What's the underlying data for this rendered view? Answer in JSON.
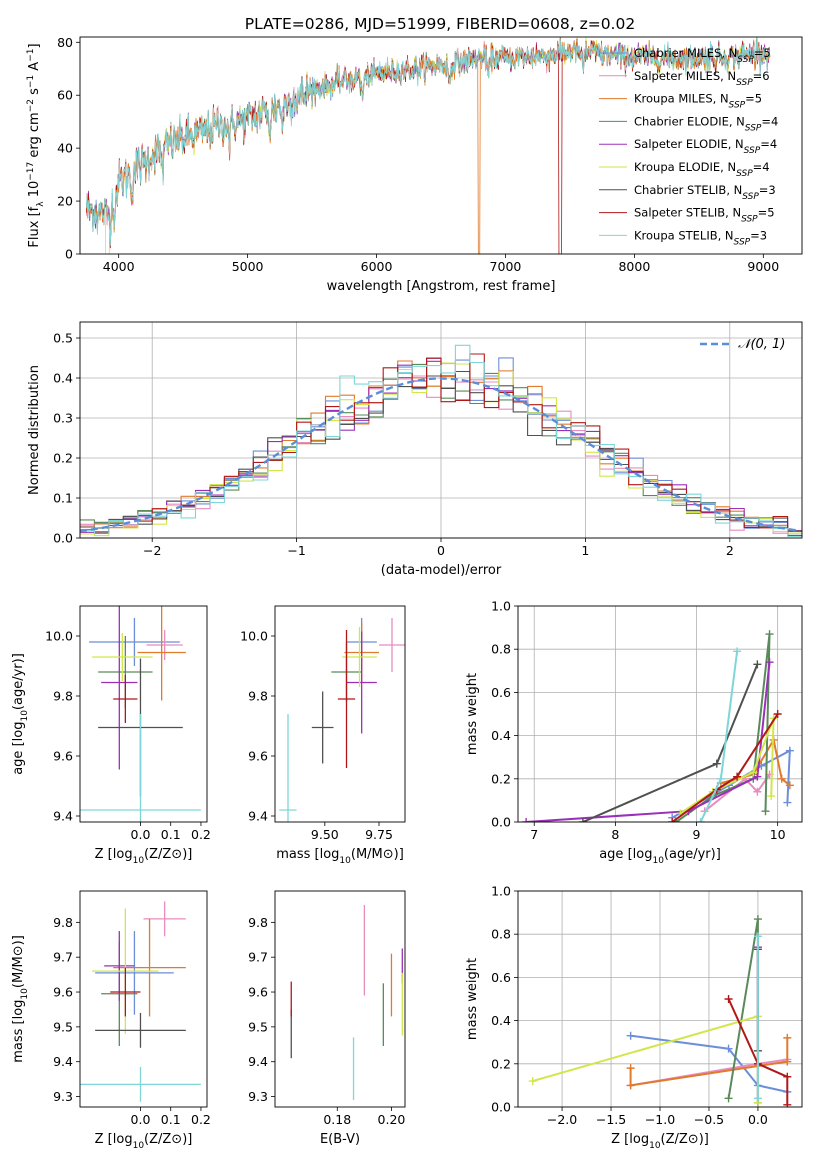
{
  "figure": {
    "title": "PLATE=0286, MJD=51999, FIBERID=0608, z=0.02"
  },
  "colors": {
    "Chabrier MILES": "#6b8fd8",
    "Salpeter MILES": "#e88cc0",
    "Kroupa MILES": "#e07a2c",
    "Chabrier ELODIE": "#5a8a5a",
    "Salpeter ELODIE": "#9b30b8",
    "Kroupa ELODIE": "#d2e64a",
    "Chabrier STELIB": "#505050",
    "Salpeter STELIB": "#b01818",
    "Kroupa STELIB": "#7fd6d8",
    "normal": "#5b8ed8"
  },
  "chart_data": [
    {
      "id": "spectrum",
      "type": "line",
      "xlabel": "wavelength [Angstrom, rest frame]",
      "ylabel": "Flux [f_λ 10^-17 erg cm^-2 s^-1 A^-1]",
      "xlim": [
        3700,
        9300
      ],
      "ylim": [
        0,
        82
      ],
      "xticks": [
        4000,
        5000,
        6000,
        7000,
        8000,
        9000
      ],
      "yticks": [
        0,
        20,
        40,
        60,
        80
      ],
      "legend_placement": "right",
      "legend": [
        {
          "label": "Chabrier MILES, N",
          "sub": "SSP",
          "tail": "=5"
        },
        {
          "label": "Salpeter MILES, N",
          "sub": "SSP",
          "tail": "=6"
        },
        {
          "label": "Kroupa MILES, N",
          "sub": "SSP",
          "tail": "=5"
        },
        {
          "label": "Chabrier ELODIE, N",
          "sub": "SSP",
          "tail": "=4"
        },
        {
          "label": "Salpeter ELODIE, N",
          "sub": "SSP",
          "tail": "=4"
        },
        {
          "label": "Kroupa ELODIE, N",
          "sub": "SSP",
          "tail": "=4"
        },
        {
          "label": "Chabrier STELIB, N",
          "sub": "SSP",
          "tail": "=3"
        },
        {
          "label": "Salpeter STELIB, N",
          "sub": "SSP",
          "tail": "=5"
        },
        {
          "label": "Kroupa STELIB, N",
          "sub": "SSP",
          "tail": "=3"
        }
      ],
      "continuum": {
        "x": [
          3750,
          3900,
          4000,
          4200,
          4400,
          4600,
          4800,
          5000,
          5200,
          5500,
          5800,
          6000,
          6300,
          6600,
          6800,
          7000,
          7300,
          7600,
          7800,
          8200,
          8600,
          9000,
          9050
        ],
        "y": [
          17,
          15,
          27,
          35,
          42,
          45,
          49,
          51,
          55,
          62,
          66,
          68,
          70,
          72,
          74,
          74,
          75,
          77,
          75,
          74,
          74,
          76,
          75
        ]
      },
      "dropouts": [
        {
          "series": "Kroupa ELODIE",
          "x_from": 3900,
          "x_to": 3925
        },
        {
          "series": "Kroupa MILES",
          "x_from": 6790,
          "x_to": 6800
        },
        {
          "series": "Salpeter STELIB",
          "x_from": 7415,
          "x_to": 7435
        }
      ]
    },
    {
      "id": "residuals",
      "type": "bar",
      "subtype": "step-histogram",
      "xlabel": "(data-model)/error",
      "ylabel": "Normed distribution",
      "xlim": [
        -2.5,
        2.5
      ],
      "ylim": [
        0,
        0.54
      ],
      "xticks": [
        -2,
        -1,
        0,
        1,
        2
      ],
      "yticks": [
        0,
        0.1,
        0.2,
        0.3,
        0.4,
        0.5
      ],
      "grid": true,
      "legend_placement": "top-right",
      "legend": "𝒩(0, 1)",
      "bin_width": 0.1,
      "gaussian": {
        "mean": 0,
        "sigma": 1
      }
    },
    {
      "id": "z-age",
      "type": "scatter",
      "subtype": "errorbar",
      "xlabel": "Z [log10(Z/Z⊙)]",
      "ylabel": "age [log10(age/yr)]",
      "xlim": [
        -0.2,
        0.22
      ],
      "ylim": [
        9.38,
        10.1
      ],
      "xticks": [
        0.0,
        0.1,
        0.2
      ],
      "yticks": [
        9.4,
        9.6,
        9.8,
        10.0
      ],
      "points": [
        {
          "series": "Chabrier MILES",
          "x": -0.02,
          "y": 9.98,
          "xerr": 0.15,
          "yerr": 0.08
        },
        {
          "series": "Salpeter MILES",
          "x": 0.08,
          "y": 9.97,
          "xerr": 0.06,
          "yerr": 0.05
        },
        {
          "series": "Kroupa MILES",
          "x": 0.07,
          "y": 9.945,
          "xerr": 0.08,
          "yerr": 0.16
        },
        {
          "series": "Chabrier ELODIE",
          "x": -0.05,
          "y": 9.88,
          "xerr": 0.09,
          "yerr": 0.12
        },
        {
          "series": "Salpeter ELODIE",
          "x": -0.07,
          "y": 9.845,
          "xerr": 0.06,
          "yerr": 0.29
        },
        {
          "series": "Kroupa ELODIE",
          "x": -0.06,
          "y": 9.93,
          "xerr": 0.1,
          "yerr": 0.08
        },
        {
          "series": "Chabrier STELIB",
          "x": 0.0,
          "y": 9.695,
          "xerr": 0.14,
          "yerr": 0.23
        },
        {
          "series": "Salpeter STELIB",
          "x": -0.05,
          "y": 9.79,
          "xerr": 0.04,
          "yerr": 0.08
        },
        {
          "series": "Kroupa STELIB",
          "x": 0.0,
          "y": 9.42,
          "xerr": 0.2,
          "yerr": 0.32
        }
      ]
    },
    {
      "id": "mass-age",
      "type": "scatter",
      "subtype": "errorbar",
      "xlabel": "mass [log10(M/M⊙)]",
      "ylabel": "",
      "xlim": [
        9.27,
        9.87
      ],
      "ylim": [
        9.38,
        10.1
      ],
      "xticks": [
        9.5,
        9.75
      ],
      "yticks": [
        9.4,
        9.6,
        9.8,
        10.0
      ],
      "points": [
        {
          "series": "Chabrier MILES",
          "x": 9.67,
          "y": 9.98,
          "xerr": 0.07,
          "yerr": 0.08
        },
        {
          "series": "Salpeter MILES",
          "x": 9.81,
          "y": 9.97,
          "xerr": 0.06,
          "yerr": 0.09
        },
        {
          "series": "Kroupa MILES",
          "x": 9.67,
          "y": 9.945,
          "xerr": 0.08,
          "yerr": 0.1
        },
        {
          "series": "Chabrier ELODIE",
          "x": 9.6,
          "y": 9.88,
          "xerr": 0.07,
          "yerr": 0.1
        },
        {
          "series": "Salpeter ELODIE",
          "x": 9.67,
          "y": 9.845,
          "xerr": 0.07,
          "yerr": 0.17
        },
        {
          "series": "Kroupa ELODIE",
          "x": 9.66,
          "y": 9.93,
          "xerr": 0.08,
          "yerr": 0.1
        },
        {
          "series": "Chabrier STELIB",
          "x": 9.49,
          "y": 9.695,
          "xerr": 0.05,
          "yerr": 0.12
        },
        {
          "series": "Salpeter STELIB",
          "x": 9.6,
          "y": 9.79,
          "xerr": 0.04,
          "yerr": 0.23
        },
        {
          "series": "Kroupa STELIB",
          "x": 9.33,
          "y": 9.42,
          "xerr": 0.04,
          "yerr": 0.32
        }
      ]
    },
    {
      "id": "age-weight",
      "type": "line",
      "xlabel": "age [log10(age/yr)]",
      "ylabel": "mass weight",
      "xlim": [
        6.8,
        10.3
      ],
      "ylim": [
        0,
        1.0
      ],
      "xticks": [
        7,
        8,
        9,
        10
      ],
      "yticks": [
        0.0,
        0.2,
        0.4,
        0.6,
        0.8,
        1.0
      ],
      "grid": true,
      "series": [
        {
          "name": "Chabrier MILES",
          "x": [
            8.7,
            9.4,
            9.8,
            10.15,
            10.12
          ],
          "y": [
            0.02,
            0.17,
            0.26,
            0.33,
            0.09
          ]
        },
        {
          "name": "Salpeter MILES",
          "x": [
            9.1,
            9.6,
            9.75,
            9.9
          ],
          "y": [
            0.05,
            0.2,
            0.14,
            0.22
          ]
        },
        {
          "name": "Kroupa MILES",
          "x": [
            9.3,
            9.7,
            9.95,
            10.05,
            10.15
          ],
          "y": [
            0.18,
            0.22,
            0.38,
            0.2,
            0.17
          ]
        },
        {
          "name": "Chabrier ELODIE",
          "x": [
            8.75,
            9.2,
            9.7,
            9.9,
            9.85
          ],
          "y": [
            0.0,
            0.12,
            0.2,
            0.87,
            0.05
          ]
        },
        {
          "name": "Salpeter ELODIE",
          "x": [
            6.9,
            8.9,
            9.75,
            9.9
          ],
          "y": [
            0.0,
            0.05,
            0.21,
            0.74
          ]
        },
        {
          "name": "Kroupa ELODIE",
          "x": [
            8.8,
            9.2,
            9.7,
            9.95,
            9.92
          ],
          "y": [
            0.04,
            0.14,
            0.23,
            0.48,
            0.12
          ]
        },
        {
          "name": "Chabrier STELIB",
          "x": [
            7.6,
            9.25,
            9.75
          ],
          "y": [
            0.0,
            0.27,
            0.73
          ]
        },
        {
          "name": "Salpeter STELIB",
          "x": [
            8.7,
            9.25,
            9.5,
            10.0
          ],
          "y": [
            0.0,
            0.15,
            0.21,
            0.5
          ]
        },
        {
          "name": "Kroupa STELIB",
          "x": [
            9.05,
            9.3,
            9.5
          ],
          "y": [
            0.0,
            0.2,
            0.79
          ]
        }
      ]
    },
    {
      "id": "z-mass",
      "type": "scatter",
      "subtype": "errorbar",
      "xlabel": "Z [log10(Z/Z⊙)]",
      "ylabel": "mass [log10(M/M⊙)]",
      "xlim": [
        -0.2,
        0.22
      ],
      "ylim": [
        9.27,
        9.89
      ],
      "xticks": [
        0.0,
        0.1,
        0.2
      ],
      "yticks": [
        9.3,
        9.4,
        9.5,
        9.6,
        9.7,
        9.8
      ],
      "points": [
        {
          "series": "Chabrier MILES",
          "x": -0.02,
          "y": 9.655,
          "xerr": 0.13,
          "yerr": 0.12
        },
        {
          "series": "Salpeter MILES",
          "x": 0.08,
          "y": 9.81,
          "xerr": 0.07,
          "yerr": 0.05
        },
        {
          "series": "Kroupa MILES",
          "x": 0.03,
          "y": 9.67,
          "xerr": 0.12,
          "yerr": 0.14
        },
        {
          "series": "Chabrier ELODIE",
          "x": -0.07,
          "y": 9.595,
          "xerr": 0.06,
          "yerr": 0.15
        },
        {
          "series": "Salpeter ELODIE",
          "x": -0.07,
          "y": 9.675,
          "xerr": 0.05,
          "yerr": 0.1
        },
        {
          "series": "Kroupa ELODIE",
          "x": -0.05,
          "y": 9.66,
          "xerr": 0.11,
          "yerr": 0.18
        },
        {
          "series": "Chabrier STELIB",
          "x": 0.0,
          "y": 9.49,
          "xerr": 0.15,
          "yerr": 0.05
        },
        {
          "series": "Salpeter STELIB",
          "x": -0.05,
          "y": 9.6,
          "xerr": 0.05,
          "yerr": 0.07
        },
        {
          "series": "Kroupa STELIB",
          "x": 0.0,
          "y": 9.335,
          "xerr": 0.2,
          "yerr": 0.05
        }
      ]
    },
    {
      "id": "ebv-mass",
      "type": "scatter",
      "subtype": "errorbar",
      "xlabel": "E(B-V)",
      "ylabel": "",
      "xlim": [
        0.157,
        0.205
      ],
      "ylim": [
        9.27,
        9.89
      ],
      "xticks": [
        0.18,
        0.2
      ],
      "yticks": [
        9.3,
        9.4,
        9.5,
        9.6,
        9.7,
        9.8
      ],
      "points": [
        {
          "series": "Salpeter MILES",
          "x": 0.19,
          "y": 9.72,
          "xerr": 0,
          "yerr": 0.13
        },
        {
          "series": "Kroupa MILES",
          "x": 0.2,
          "y": 9.62,
          "xerr": 0,
          "yerr": 0.09
        },
        {
          "series": "Chabrier ELODIE",
          "x": 0.197,
          "y": 9.535,
          "xerr": 0,
          "yerr": 0.09
        },
        {
          "series": "Salpeter ELODIE",
          "x": 0.204,
          "y": 9.675,
          "xerr": 0,
          "yerr": 0.05
        },
        {
          "series": "Kroupa ELODIE",
          "x": 0.204,
          "y": 9.565,
          "xerr": 0,
          "yerr": 0.09
        },
        {
          "series": "Chabrier STELIB",
          "x": 0.163,
          "y": 9.48,
          "xerr": 0,
          "yerr": 0.07
        },
        {
          "series": "Salpeter STELIB",
          "x": 0.163,
          "y": 9.58,
          "xerr": 0,
          "yerr": 0.05
        },
        {
          "series": "Kroupa STELIB",
          "x": 0.186,
          "y": 9.38,
          "xerr": 0,
          "yerr": 0.09
        }
      ]
    },
    {
      "id": "z-weight",
      "type": "line",
      "xlabel": "Z [log10(Z/Z⊙)]",
      "ylabel": "mass weight",
      "xlim": [
        -2.45,
        0.45
      ],
      "ylim": [
        0,
        1.0
      ],
      "xticks": [
        -2.0,
        -1.5,
        -1.0,
        -0.5,
        0.0
      ],
      "yticks": [
        0.0,
        0.2,
        0.4,
        0.6,
        0.8,
        1.0
      ],
      "grid": true,
      "series": [
        {
          "name": "Chabrier MILES",
          "x": [
            -1.3,
            -0.3,
            0.0,
            0.3
          ],
          "y": [
            0.33,
            0.27,
            0.1,
            0.07
          ]
        },
        {
          "name": "Salpeter MILES",
          "x": [
            -1.3,
            0.0,
            0.3
          ],
          "y": [
            0.1,
            0.2,
            0.22
          ]
        },
        {
          "name": "Kroupa MILES",
          "x": [
            -1.3,
            -1.3,
            0.0,
            0.3,
            0.3
          ],
          "y": [
            0.18,
            0.1,
            0.19,
            0.21,
            0.32
          ]
        },
        {
          "name": "Chabrier ELODIE",
          "x": [
            -0.3,
            0.0,
            0.0
          ],
          "y": [
            0.04,
            0.87,
            0.02
          ]
        },
        {
          "name": "Salpeter ELODIE",
          "x": [
            0.0,
            0.0
          ],
          "y": [
            0.74,
            0.02
          ]
        },
        {
          "name": "Kroupa ELODIE",
          "x": [
            -2.3,
            0.0,
            0.0
          ],
          "y": [
            0.12,
            0.42,
            0.02
          ]
        },
        {
          "name": "Chabrier STELIB",
          "x": [
            0.0,
            0.0
          ],
          "y": [
            0.73,
            0.26
          ]
        },
        {
          "name": "Salpeter STELIB",
          "x": [
            -0.3,
            0.0,
            0.3,
            0.3
          ],
          "y": [
            0.5,
            0.2,
            0.14,
            0.01
          ]
        },
        {
          "name": "Kroupa STELIB",
          "x": [
            0.0,
            0.0
          ],
          "y": [
            0.79,
            0.04
          ]
        }
      ]
    }
  ]
}
